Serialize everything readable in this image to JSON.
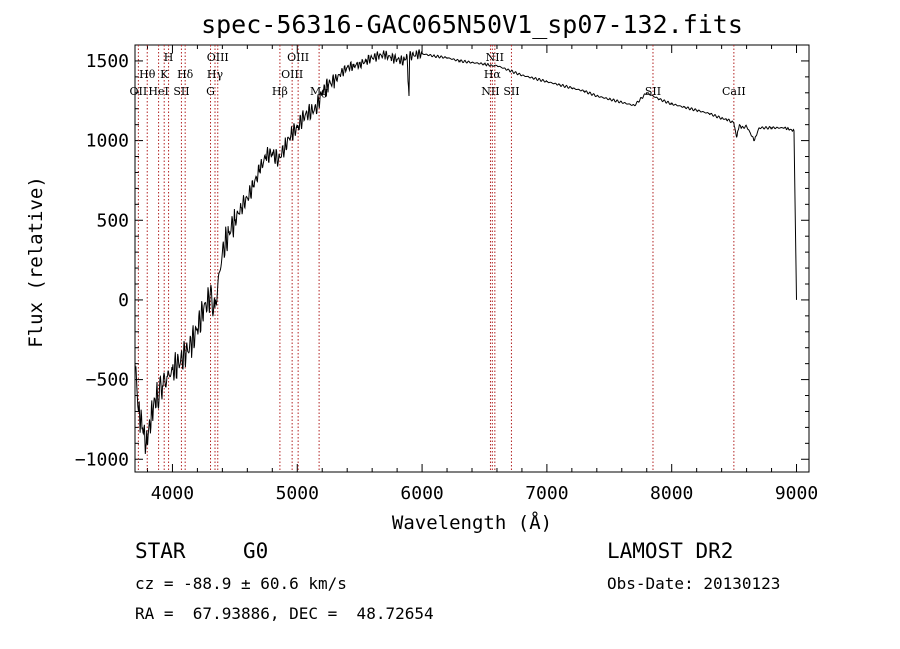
{
  "chart_data": {
    "type": "line",
    "title": "spec-56316-GAC065N50V1_sp07-132.fits",
    "xlabel": "Wavelength (Å)",
    "ylabel": "Flux (relative)",
    "xlim": [
      3700,
      9100
    ],
    "ylim": [
      -1080,
      1600
    ],
    "xticks": [
      4000,
      5000,
      6000,
      7000,
      8000,
      9000
    ],
    "yticks": [
      -1000,
      -500,
      0,
      500,
      1000,
      1500
    ],
    "grid": false,
    "series": [
      {
        "x": [
          3700,
          3730,
          3760,
          3790,
          3820,
          3850,
          3880,
          3920,
          3960,
          4000,
          4050,
          4100,
          4150,
          4200,
          4250,
          4300,
          4340,
          4400,
          4450,
          4500,
          4550,
          4600,
          4650,
          4700,
          4750,
          4800,
          4850,
          4900,
          4950,
          5000,
          5050,
          5100,
          5150,
          5200,
          5250,
          5300,
          5350,
          5400,
          5450,
          5500,
          5550,
          5600,
          5650,
          5700,
          5750,
          5800,
          5850,
          5880,
          5895,
          5900,
          5950,
          6000,
          6100,
          6200,
          6300,
          6400,
          6500,
          6563,
          6600,
          6700,
          6800,
          6900,
          7000,
          7100,
          7200,
          7300,
          7400,
          7500,
          7600,
          7700,
          7800,
          7900,
          8000,
          8100,
          8200,
          8300,
          8400,
          8450,
          8498,
          8520,
          8542,
          8560,
          8600,
          8662,
          8700,
          8800,
          8900,
          8950,
          8980,
          9000
        ],
        "y": [
          -400,
          -700,
          -800,
          -900,
          -780,
          -650,
          -600,
          -540,
          -480,
          -440,
          -400,
          -340,
          -280,
          -180,
          -60,
          20,
          -50,
          300,
          420,
          500,
          580,
          640,
          720,
          820,
          900,
          920,
          880,
          960,
          1040,
          1080,
          1150,
          1180,
          1200,
          1300,
          1350,
          1380,
          1420,
          1460,
          1470,
          1480,
          1500,
          1520,
          1530,
          1540,
          1520,
          1510,
          1500,
          1530,
          1280,
          1530,
          1540,
          1545,
          1530,
          1520,
          1500,
          1490,
          1480,
          1470,
          1470,
          1440,
          1410,
          1390,
          1370,
          1350,
          1330,
          1310,
          1280,
          1260,
          1240,
          1220,
          1300,
          1260,
          1230,
          1210,
          1190,
          1170,
          1140,
          1130,
          1110,
          1020,
          1100,
          1080,
          1090,
          1000,
          1080,
          1080,
          1080,
          1070,
          1060,
          0
        ]
      }
    ],
    "lines": [
      {
        "x": 3727,
        "label": "OII"
      },
      {
        "x": 3798,
        "label": "Hθ"
      },
      {
        "x": 3889,
        "label": "HeI"
      },
      {
        "x": 3934,
        "label": "K"
      },
      {
        "x": 3969,
        "label": "H"
      },
      {
        "x": 4072,
        "label": "SII"
      },
      {
        "x": 4102,
        "label": "Hδ"
      },
      {
        "x": 4305,
        "label": "G"
      },
      {
        "x": 4341,
        "label": "Hγ"
      },
      {
        "x": 4363,
        "label": "OIII"
      },
      {
        "x": 4861,
        "label": "Hβ"
      },
      {
        "x": 4959,
        "label": "OIII"
      },
      {
        "x": 5007,
        "label": "OIII"
      },
      {
        "x": 5175,
        "label": "Mg"
      },
      {
        "x": 6548,
        "label": "NII"
      },
      {
        "x": 6563,
        "label": "Hα"
      },
      {
        "x": 6583,
        "label": "NII"
      },
      {
        "x": 6716,
        "label": "SII"
      },
      {
        "x": 7850,
        "label": "SII"
      },
      {
        "x": 8498,
        "label": "CaII"
      }
    ]
  },
  "info": {
    "object_class": "STAR",
    "subclass": "G0",
    "survey": "LAMOST DR2",
    "redshift": "cz = -88.9 ± 60.6 km/s",
    "obs_date": "Obs-Date: 20130123",
    "coords": "RA =  67.93886, DEC =  48.72654"
  }
}
